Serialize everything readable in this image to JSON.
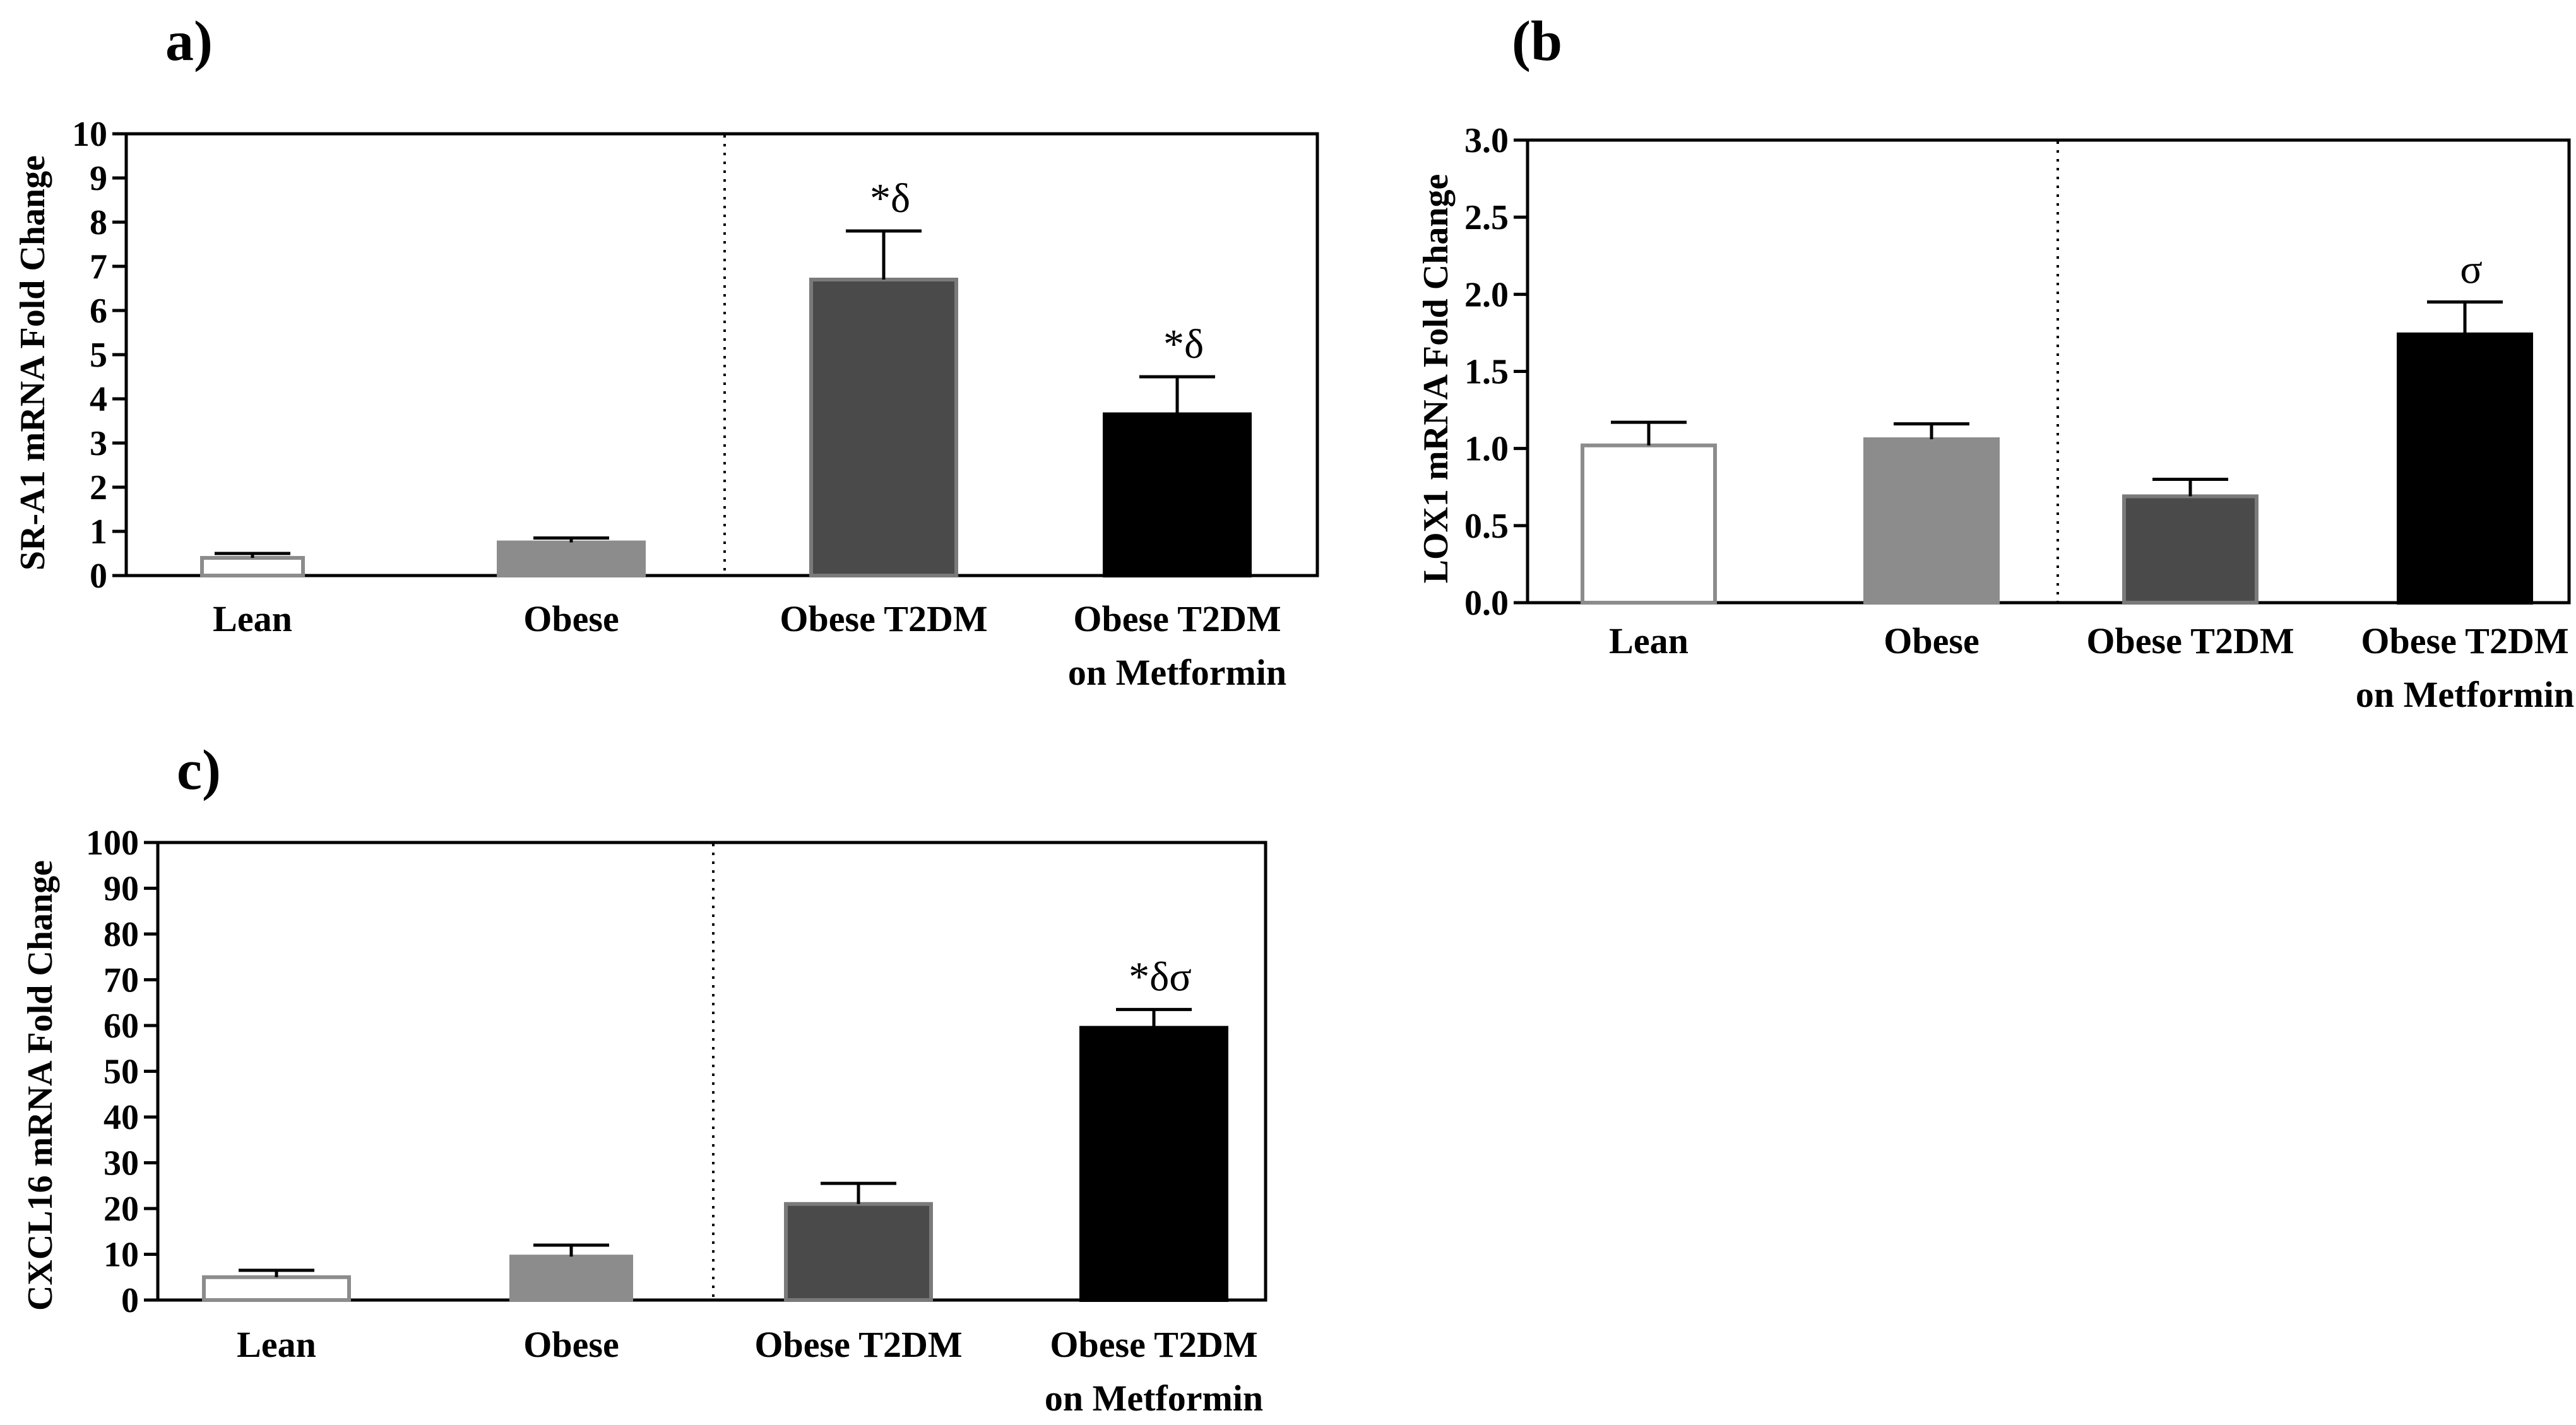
{
  "chart_data": [
    {
      "panel": "a)",
      "type": "bar",
      "categories": [
        "Lean",
        "Obese",
        "Obese T2DM",
        "Obese T2DM\non Metformin"
      ],
      "values": [
        0.4,
        0.75,
        6.7,
        3.65
      ],
      "errors": [
        0.1,
        0.1,
        1.1,
        0.85
      ],
      "annotations": [
        "",
        "",
        "*δ",
        "*δ"
      ],
      "bar_fill": [
        "#ffffff",
        "#8c8c8c",
        "#4a4a4a",
        "#000000"
      ],
      "bar_stroke": [
        "#8c8c8c",
        "#8c8c8c",
        "#7a7a7a",
        "#000000"
      ],
      "ylabel": "SR-A1 mRNA Fold Change",
      "xlabel": "",
      "ylim": [
        0,
        10
      ],
      "yticks": [
        0,
        1,
        2,
        3,
        4,
        5,
        6,
        7,
        8,
        9,
        10
      ],
      "ytick_labels": [
        "0",
        "1",
        "2",
        "3",
        "4",
        "5",
        "6",
        "7",
        "8",
        "9",
        "10"
      ],
      "divider_after_category": 2,
      "grid": false
    },
    {
      "panel": "(b",
      "type": "bar",
      "categories": [
        "Lean",
        "Obese",
        "Obese T2DM",
        "Obese T2DM\non Metformin"
      ],
      "values": [
        1.02,
        1.06,
        0.69,
        1.74
      ],
      "errors": [
        0.15,
        0.1,
        0.11,
        0.21
      ],
      "annotations": [
        "",
        "",
        "",
        "σ"
      ],
      "bar_fill": [
        "#ffffff",
        "#8c8c8c",
        "#4a4a4a",
        "#000000"
      ],
      "bar_stroke": [
        "#8c8c8c",
        "#8c8c8c",
        "#7a7a7a",
        "#000000"
      ],
      "ylabel": "LOX1 mRNA Fold Change",
      "xlabel": "",
      "ylim": [
        0,
        3
      ],
      "yticks": [
        0,
        0.5,
        1,
        1.5,
        2,
        2.5,
        3
      ],
      "ytick_labels": [
        "0.0",
        "0.5",
        "1.0",
        "1.5",
        "2.0",
        "2.5",
        "3.0"
      ],
      "divider_after_category": 2,
      "grid": false
    },
    {
      "panel": "c)",
      "type": "bar",
      "categories": [
        "Lean",
        "Obese",
        "Obese T2DM",
        "Obese T2DM\non Metformin"
      ],
      "values": [
        5,
        9.5,
        21,
        59.5
      ],
      "errors": [
        1.5,
        2.5,
        4.5,
        4
      ],
      "annotations": [
        "",
        "",
        "",
        "*δσ"
      ],
      "bar_fill": [
        "#ffffff",
        "#8c8c8c",
        "#4a4a4a",
        "#000000"
      ],
      "bar_stroke": [
        "#8c8c8c",
        "#8c8c8c",
        "#7a7a7a",
        "#000000"
      ],
      "ylabel": "CXCL16 mRNA Fold Change",
      "xlabel": "",
      "ylim": [
        0,
        100
      ],
      "yticks": [
        0,
        10,
        20,
        30,
        40,
        50,
        60,
        70,
        80,
        90,
        100
      ],
      "ytick_labels": [
        "0",
        "10",
        "20",
        "30",
        "40",
        "50",
        "60",
        "70",
        "80",
        "90",
        "100"
      ],
      "divider_after_category": 2,
      "grid": false
    }
  ]
}
